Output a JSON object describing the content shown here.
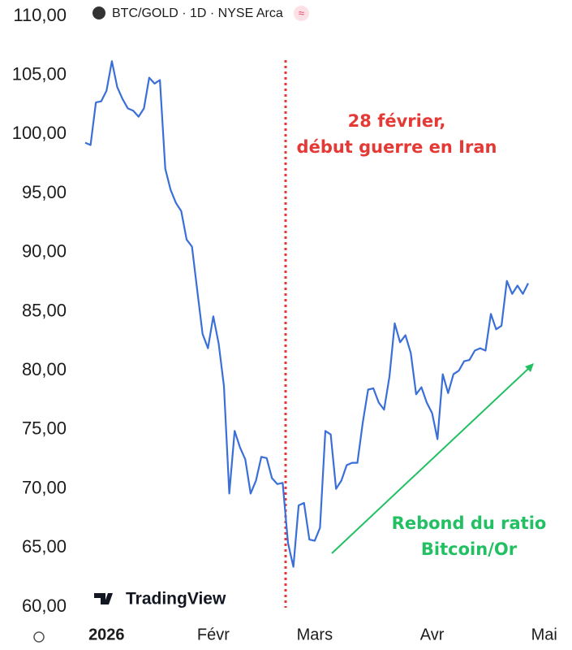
{
  "chart_data": {
    "type": "line",
    "title": "BTC/GOLD · 1D · NYSE Arca",
    "watermark": "TradingView",
    "annotations": [
      {
        "lines": [
          "28 février,",
          "début guerre en Iran"
        ],
        "color": "#e53935"
      },
      {
        "lines": [
          "Rebond du ratio",
          "Bitcoin/Or"
        ],
        "color": "#22c063"
      }
    ],
    "categories": [
      null,
      null,
      null,
      null,
      "2026",
      null,
      null,
      null,
      null,
      null,
      null,
      null,
      null,
      null,
      null,
      null,
      null,
      null,
      null,
      null,
      null,
      null,
      null,
      null,
      "Févr",
      null,
      null,
      null,
      null,
      null,
      null,
      null,
      null,
      null,
      null,
      null,
      null,
      null,
      null,
      null,
      null,
      null,
      null,
      "Mars",
      null,
      null,
      null,
      null,
      null,
      null,
      null,
      null,
      null,
      null,
      null,
      null,
      null,
      null,
      null,
      null,
      null,
      null,
      null,
      null,
      null,
      "Avr",
      null,
      null,
      null,
      null,
      null,
      null,
      null,
      null,
      null,
      null,
      null,
      null,
      null,
      null,
      null,
      null,
      null,
      null,
      null,
      null,
      "Mai"
    ],
    "series": [
      {
        "name": "BTC/GOLD",
        "color": "#3b6fd8",
        "values": [
          99.3,
          99.1,
          102.7,
          102.8,
          103.7,
          106.2,
          104.0,
          103.0,
          102.2,
          102.0,
          101.5,
          102.2,
          104.8,
          104.3,
          104.6,
          97.1,
          95.3,
          94.2,
          93.5,
          91.1,
          90.5,
          86.8,
          83.1,
          81.9,
          84.6,
          82.3,
          78.7,
          69.6,
          74.9,
          73.5,
          72.5,
          69.6,
          70.7,
          72.7,
          72.6,
          70.9,
          70.4,
          70.5,
          65.4,
          63.4,
          68.6,
          68.8,
          65.7,
          65.6,
          66.7,
          74.9,
          74.6,
          70.0,
          70.7,
          72.0,
          72.2,
          72.2,
          75.6,
          78.4,
          78.5,
          77.3,
          76.7,
          79.5,
          84.0,
          82.4,
          83.0,
          81.5,
          78.0,
          78.6,
          77.3,
          76.4,
          74.2,
          79.7,
          78.1,
          79.7,
          80.0,
          80.8,
          80.9,
          81.7,
          81.9,
          81.7,
          84.8,
          83.5,
          83.8,
          87.6,
          86.5,
          87.2,
          86.5,
          87.4,
          null,
          null,
          null
        ]
      }
    ],
    "ylim": [
      60,
      110
    ],
    "yticks": [
      {
        "value": 110,
        "label": "110,00"
      },
      {
        "value": 105,
        "label": "105,00"
      },
      {
        "value": 100,
        "label": "100,00"
      },
      {
        "value": 95,
        "label": "95,00"
      },
      {
        "value": 90,
        "label": "90,00"
      },
      {
        "value": 85,
        "label": "85,00"
      },
      {
        "value": 80,
        "label": "80,00"
      },
      {
        "value": 75,
        "label": "75,00"
      },
      {
        "value": 70,
        "label": "70,00"
      },
      {
        "value": 65,
        "label": "65,00"
      },
      {
        "value": 60,
        "label": "60,00"
      }
    ],
    "grid": false
  }
}
